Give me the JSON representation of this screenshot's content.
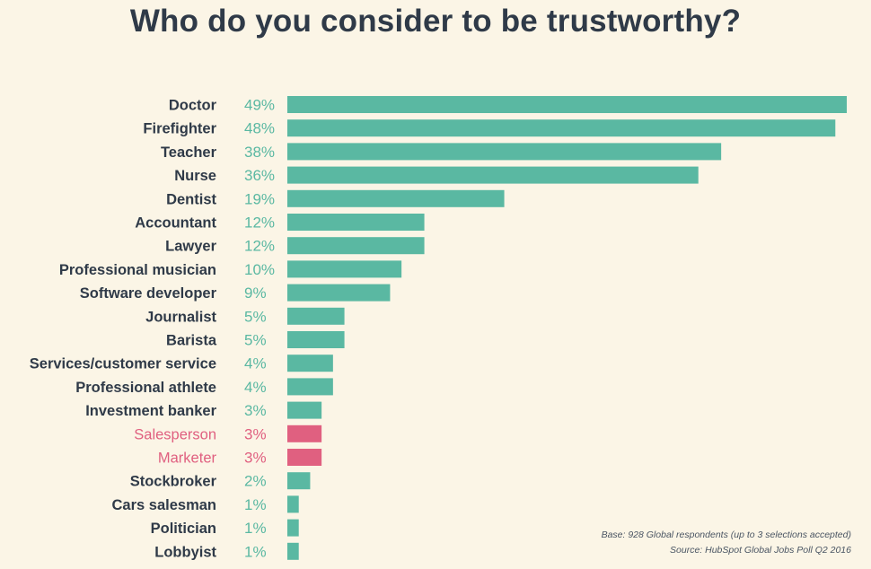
{
  "chart_data": {
    "type": "bar",
    "orientation": "horizontal",
    "title": "Who do you consider to be trustworthy?",
    "categories": [
      "Doctor",
      "Firefighter",
      "Teacher",
      "Nurse",
      "Dentist",
      "Accountant",
      "Lawyer",
      "Professional musician",
      "Software developer",
      "Journalist",
      "Barista",
      "Services/customer service",
      "Professional athlete",
      "Investment banker",
      "Salesperson",
      "Marketer",
      "Stockbroker",
      "Cars salesman",
      "Politician",
      "Lobbyist"
    ],
    "values": [
      49,
      48,
      38,
      36,
      19,
      12,
      12,
      10,
      9,
      5,
      5,
      4,
      4,
      3,
      3,
      3,
      2,
      1,
      1,
      1
    ],
    "value_labels": [
      "49%",
      "48%",
      "38%",
      "36%",
      "19%",
      "12%",
      "12%",
      "10%",
      "9%",
      "5%",
      "5%",
      "4%",
      "4%",
      "3%",
      "3%",
      "3%",
      "2%",
      "1%",
      "1%",
      "1%"
    ],
    "highlighted": [
      "Salesperson",
      "Marketer"
    ],
    "unit": "%",
    "grid": false,
    "legend": "none",
    "colors": {
      "bar": "#5ab8a2",
      "highlight": "#e06080",
      "title": "#2f3a48",
      "background": "#fbf5e6"
    }
  },
  "footnote": {
    "base": "Base: 928 Global respondents (up to 3 selections accepted)",
    "source": "Source: HubSpot Global Jobs Poll Q2 2016"
  }
}
